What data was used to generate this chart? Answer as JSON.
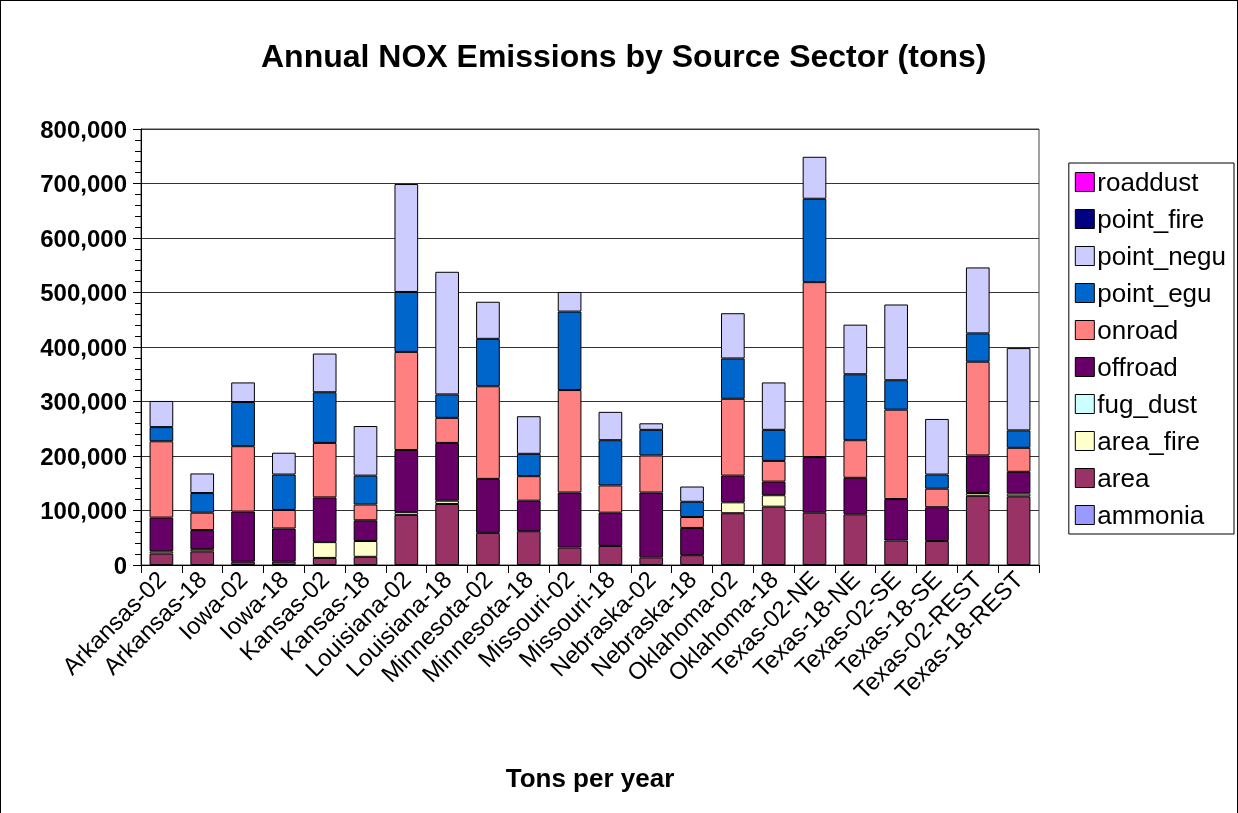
{
  "chart_data": {
    "type": "bar",
    "stacked": true,
    "title": "Annual NOX Emissions by Source Sector (tons)",
    "xlabel": "Tons per year",
    "categories": [
      "Arkansas-02",
      "Arkansas-18",
      "Iowa-02",
      "Iowa-18",
      "Kansas-02",
      "Kansas-18",
      "Louisiana-02",
      "Louisiana-18",
      "Minnesota-02",
      "Minnesota-18",
      "Missouri-02",
      "Missouri-18",
      "Nebraska-02",
      "Nebraska-18",
      "Oklahoma-02",
      "Oklahoma-18",
      "Texas-02-NE",
      "Texas-18-NE",
      "Texas-02-SE",
      "Texas-18-SE",
      "Texas-02-REST",
      "Texas-18-REST"
    ],
    "series": [
      {
        "name": "ammonia",
        "color": "#9999ff",
        "values": [
          0,
          0,
          0,
          0,
          0,
          0,
          0,
          0,
          0,
          0,
          0,
          0,
          0,
          0,
          0,
          0,
          0,
          0,
          0,
          0,
          0,
          0
        ]
      },
      {
        "name": "area",
        "color": "#993366",
        "values": [
          21000,
          25000,
          6000,
          6000,
          13000,
          15000,
          92000,
          112000,
          59000,
          62000,
          32000,
          35000,
          14000,
          18000,
          95000,
          107000,
          96000,
          93000,
          45000,
          44000,
          127000,
          126000
        ]
      },
      {
        "name": "area_fire",
        "color": "#ffffcc",
        "values": [
          4000,
          4000,
          0,
          0,
          29000,
          29000,
          5000,
          6000,
          0,
          0,
          0,
          0,
          0,
          0,
          20000,
          21000,
          0,
          0,
          0,
          0,
          5000,
          5000
        ]
      },
      {
        "name": "fug_dust",
        "color": "#ccffff",
        "values": [
          0,
          0,
          0,
          0,
          0,
          0,
          0,
          0,
          0,
          0,
          0,
          0,
          0,
          0,
          0,
          0,
          0,
          0,
          0,
          0,
          0,
          0
        ]
      },
      {
        "name": "offroad",
        "color": "#660066",
        "values": [
          62000,
          35000,
          92000,
          61000,
          82000,
          38000,
          114000,
          106000,
          99000,
          56000,
          101000,
          61000,
          119000,
          50000,
          49000,
          25000,
          102000,
          67000,
          76000,
          62000,
          69000,
          40000
        ]
      },
      {
        "name": "onroad",
        "color": "#ff8080",
        "values": [
          140000,
          32000,
          120000,
          34000,
          100000,
          29000,
          180000,
          46000,
          170000,
          45000,
          188000,
          50000,
          68000,
          20000,
          141000,
          38000,
          321000,
          69000,
          164000,
          34000,
          172000,
          44000
        ]
      },
      {
        "name": "point_egu",
        "color": "#0066cc",
        "values": [
          26000,
          36000,
          81000,
          65000,
          93000,
          53000,
          110000,
          43000,
          87000,
          41000,
          144000,
          83000,
          47000,
          28000,
          74000,
          57000,
          153000,
          121000,
          54000,
          26000,
          52000,
          32000
        ]
      },
      {
        "name": "point_negu",
        "color": "#ccccff",
        "values": [
          48000,
          36000,
          36000,
          40000,
          71000,
          91000,
          198000,
          225000,
          68000,
          69000,
          36000,
          52000,
          12000,
          28000,
          83000,
          87000,
          77000,
          91000,
          139000,
          102000,
          121000,
          151000
        ]
      },
      {
        "name": "point_fire",
        "color": "#000080",
        "values": [
          0,
          0,
          0,
          0,
          0,
          0,
          0,
          0,
          0,
          0,
          0,
          0,
          0,
          0,
          0,
          0,
          0,
          0,
          0,
          0,
          0,
          0
        ]
      },
      {
        "name": "roaddust",
        "color": "#ff00ff",
        "values": [
          0,
          0,
          0,
          0,
          0,
          0,
          0,
          0,
          0,
          0,
          0,
          0,
          0,
          0,
          0,
          0,
          0,
          0,
          0,
          0,
          0,
          0
        ]
      }
    ],
    "ylim": [
      0,
      800000
    ],
    "yticks": [
      {
        "value": 0,
        "label": "0"
      },
      {
        "value": 100000,
        "label": "100,000"
      },
      {
        "value": 200000,
        "label": "200,000"
      },
      {
        "value": 300000,
        "label": "300,000"
      },
      {
        "value": 400000,
        "label": "400,000"
      },
      {
        "value": 500000,
        "label": "500,000"
      },
      {
        "value": 600000,
        "label": "600,000"
      },
      {
        "value": 700000,
        "label": "700,000"
      },
      {
        "value": 800000,
        "label": "800,000"
      }
    ],
    "grid": "y",
    "legend": "right"
  }
}
